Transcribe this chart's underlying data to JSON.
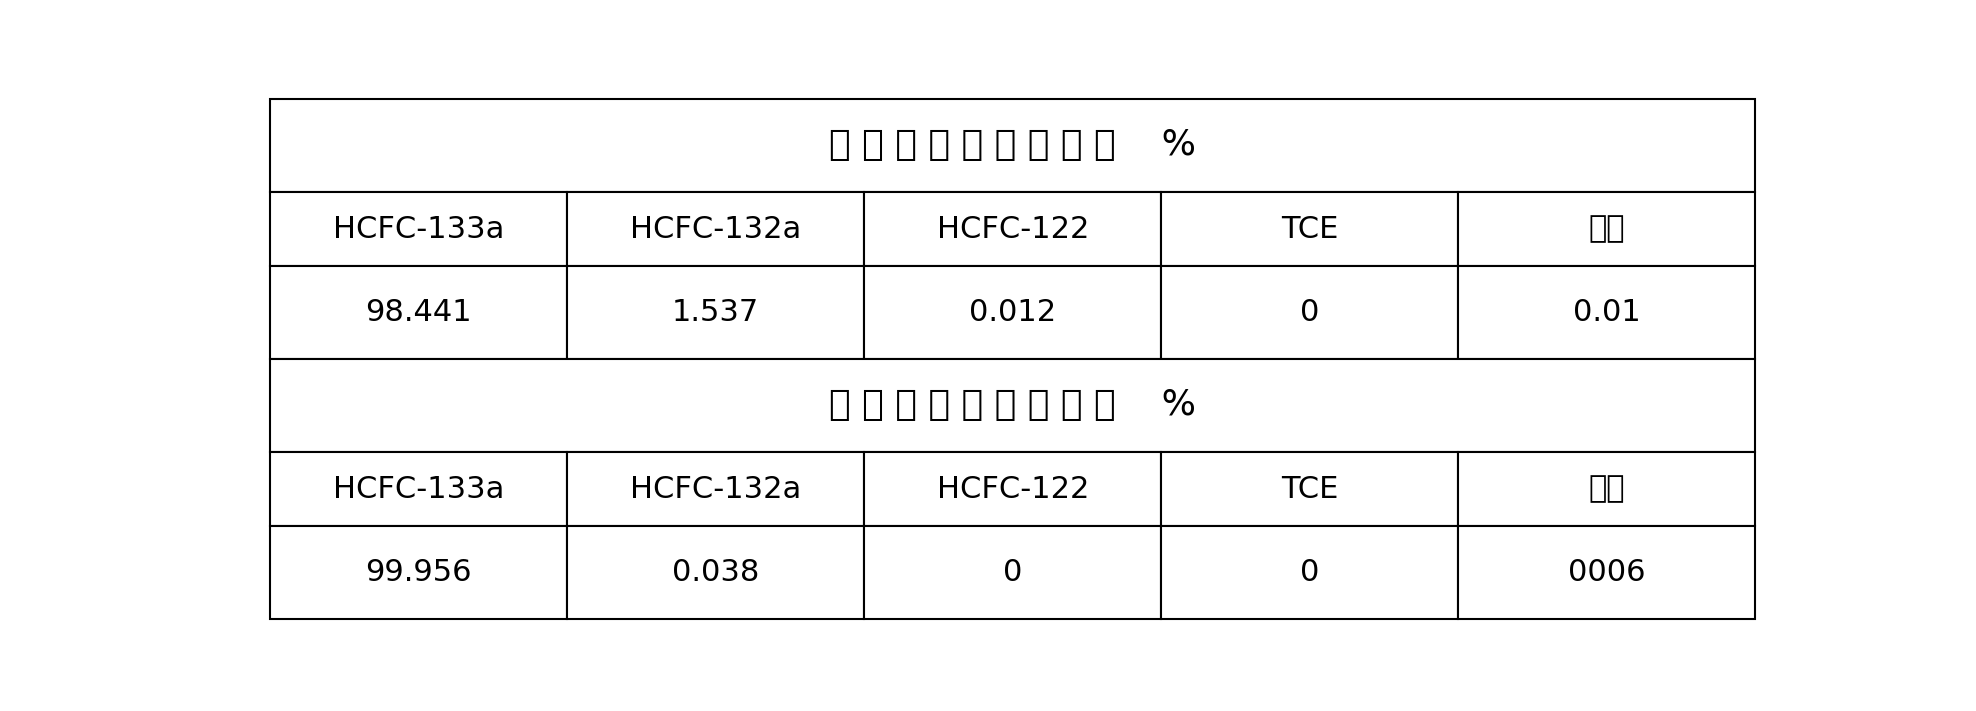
{
  "title1": "反应回流塔排气组成    %",
  "title2": "分离塔塔中出料组成    %",
  "title1_spaced": "反 应 回 流 塔 排 气 组 成    %",
  "title2_spaced": "分 离 塔 塔 中 出 料 组 成    %",
  "headers": [
    "HCFC-133a",
    "HCFC-132a",
    "HCFC-122",
    "TCE",
    "其它"
  ],
  "row1": [
    "98.441",
    "1.537",
    "0.012",
    "0",
    "0.01"
  ],
  "row2": [
    "99.956",
    "0.038",
    "0",
    "0",
    "0006"
  ],
  "bg_color": "#ffffff",
  "border_color": "#000000",
  "text_color": "#000000",
  "figsize": [
    19.76,
    7.11
  ],
  "dpi": 100
}
